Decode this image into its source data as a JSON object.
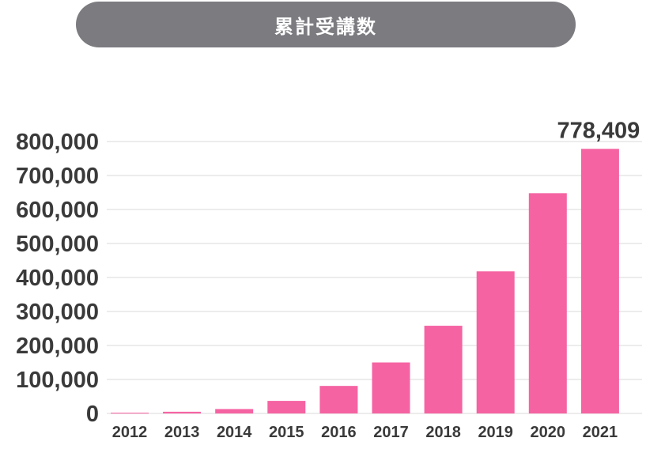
{
  "chart_data": {
    "type": "bar",
    "title": "累計受講数",
    "categories": [
      "2012",
      "2013",
      "2014",
      "2015",
      "2016",
      "2017",
      "2018",
      "2019",
      "2020",
      "2021"
    ],
    "values": [
      2000,
      5000,
      13000,
      37000,
      81000,
      150000,
      258000,
      418000,
      648000,
      778409
    ],
    "data_labels": [
      {
        "index": 9,
        "text": "778,409"
      }
    ],
    "ylim": [
      0,
      800000
    ],
    "yticks": [
      0,
      100000,
      200000,
      300000,
      400000,
      500000,
      600000,
      700000,
      800000
    ],
    "ytick_labels": [
      "0",
      "100,000",
      "200,000",
      "300,000",
      "400,000",
      "500,000",
      "600,000",
      "700,000",
      "800,000"
    ],
    "xlabel": "",
    "ylabel": "",
    "grid": true,
    "bar_color": "#f563a2",
    "grid_color": "#e6e6e6"
  }
}
